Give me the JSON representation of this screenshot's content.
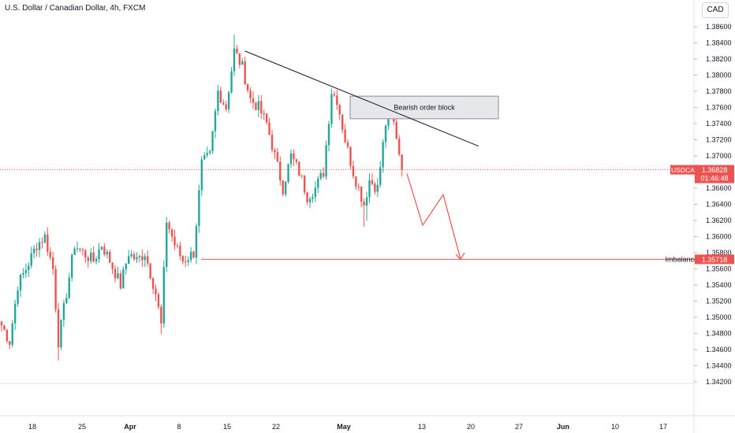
{
  "header": {
    "title": "U.S. Dollar / Canadian Dollar, 4h, FXCM",
    "currency": "CAD"
  },
  "chart_data": {
    "type": "candlestick",
    "symbol": "USDCAD",
    "ylim": [
      1.3405,
      1.3875
    ],
    "y_ticks": [
      "1.38600",
      "1.38400",
      "1.38200",
      "1.38000",
      "1.37800",
      "1.37600",
      "1.37400",
      "1.37200",
      "1.37000",
      "1.36800",
      "1.36600",
      "1.36400",
      "1.36200",
      "1.36000",
      "1.35800",
      "1.35600",
      "1.35400",
      "1.35200",
      "1.35000",
      "1.34800",
      "1.34600",
      "1.34400",
      "1.34200"
    ],
    "x_ticks": [
      "18",
      "25",
      "Apr",
      "8",
      "15",
      "22",
      "May",
      "13",
      "20",
      "27",
      "Jun",
      "10",
      "17"
    ],
    "price": {
      "label": "USDCAD",
      "value": "1.36828",
      "countdown": "01:46:48",
      "level": 1.36828
    },
    "imbalance": {
      "label": "Imbalance",
      "value": "1.35718",
      "level": 1.35718
    },
    "order_block": {
      "label": "Bearish order block",
      "top": 1.3774,
      "bottom": 1.3746
    },
    "trendline": [
      {
        "i": 87,
        "y": 1.383
      },
      {
        "i": 171,
        "y": 1.3712
      }
    ],
    "projection": [
      {
        "i": 146,
        "y": 1.368
      },
      {
        "i": 153,
        "y": 1.3614
      },
      {
        "i": 160,
        "y": 1.3652
      },
      {
        "i": 167,
        "y": 1.3572
      }
    ],
    "anchors": [
      {
        "i": 0,
        "y": 1.349
      },
      {
        "i": 3,
        "y": 1.347
      },
      {
        "i": 6,
        "y": 1.354
      },
      {
        "i": 9,
        "y": 1.356
      },
      {
        "i": 13,
        "y": 1.359
      },
      {
        "i": 16,
        "y": 1.36
      },
      {
        "i": 19,
        "y": 1.356
      },
      {
        "i": 21,
        "y": 1.347
      },
      {
        "i": 24,
        "y": 1.353
      },
      {
        "i": 27,
        "y": 1.359
      },
      {
        "i": 30,
        "y": 1.358
      },
      {
        "i": 34,
        "y": 1.357
      },
      {
        "i": 37,
        "y": 1.359
      },
      {
        "i": 40,
        "y": 1.357
      },
      {
        "i": 44,
        "y": 1.354
      },
      {
        "i": 47,
        "y": 1.358
      },
      {
        "i": 50,
        "y": 1.357
      },
      {
        "i": 53,
        "y": 1.358
      },
      {
        "i": 57,
        "y": 1.353
      },
      {
        "i": 59,
        "y": 1.349
      },
      {
        "i": 61,
        "y": 1.362
      },
      {
        "i": 64,
        "y": 1.359
      },
      {
        "i": 67,
        "y": 1.357
      },
      {
        "i": 71,
        "y": 1.358
      },
      {
        "i": 74,
        "y": 1.369
      },
      {
        "i": 77,
        "y": 1.37
      },
      {
        "i": 80,
        "y": 1.378
      },
      {
        "i": 83,
        "y": 1.376
      },
      {
        "i": 86,
        "y": 1.383
      },
      {
        "i": 89,
        "y": 1.381
      },
      {
        "i": 92,
        "y": 1.377
      },
      {
        "i": 95,
        "y": 1.376
      },
      {
        "i": 98,
        "y": 1.374
      },
      {
        "i": 101,
        "y": 1.37
      },
      {
        "i": 104,
        "y": 1.366
      },
      {
        "i": 107,
        "y": 1.37
      },
      {
        "i": 110,
        "y": 1.368
      },
      {
        "i": 113,
        "y": 1.365
      },
      {
        "i": 116,
        "y": 1.366
      },
      {
        "i": 119,
        "y": 1.368
      },
      {
        "i": 122,
        "y": 1.378
      },
      {
        "i": 124,
        "y": 1.377
      },
      {
        "i": 127,
        "y": 1.372
      },
      {
        "i": 130,
        "y": 1.368
      },
      {
        "i": 132,
        "y": 1.366
      },
      {
        "i": 134,
        "y": 1.364
      },
      {
        "i": 136,
        "y": 1.367
      },
      {
        "i": 139,
        "y": 1.366
      },
      {
        "i": 142,
        "y": 1.374
      },
      {
        "i": 144,
        "y": 1.3755
      },
      {
        "i": 146,
        "y": 1.3725
      },
      {
        "i": 148,
        "y": 1.3683
      }
    ]
  }
}
